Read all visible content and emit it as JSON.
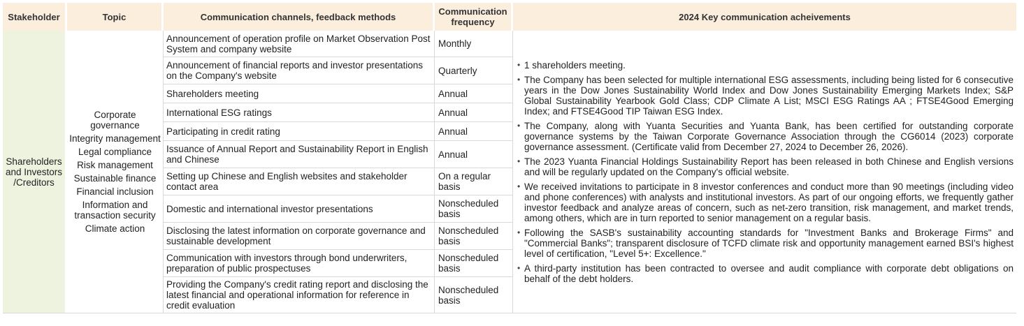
{
  "headers": {
    "stakeholder": "Stakeholder",
    "topic": "Topic",
    "channels": "Communication channels, feedback methods",
    "frequency": "Communication frequency",
    "achievements": "2024 Key communication acheivements"
  },
  "stakeholder": "Shareholders and Investors /Creditors",
  "topics": [
    "Corporate governance",
    "Integrity management",
    "Legal compliance",
    "Risk management",
    "Sustainable finance",
    "Financial inclusion",
    "Information and transaction security",
    "Climate action"
  ],
  "rows": [
    {
      "channel": "Announcement of operation profile on Market Observation Post System and company website",
      "frequency": "Monthly"
    },
    {
      "channel": "Announcement of financial reports and investor presentations on the Company's website",
      "frequency": "Quarterly"
    },
    {
      "channel": "Shareholders meeting",
      "frequency": "Annual"
    },
    {
      "channel": "International ESG ratings",
      "frequency": "Annual"
    },
    {
      "channel": "Participating in credit rating",
      "frequency": "Annual"
    },
    {
      "channel": "Issuance of Annual Report and Sustainability Report in English and Chinese",
      "frequency": "Annual"
    },
    {
      "channel": "Setting up Chinese and English websites and stakeholder contact area",
      "frequency": "On a regular basis"
    },
    {
      "channel": "Domestic and international investor presentations",
      "frequency": "Nonscheduled basis"
    },
    {
      "channel": "Disclosing the latest information on corporate governance and sustainable development",
      "frequency": "Nonscheduled basis"
    },
    {
      "channel": "Communication with investors through bond underwriters, preparation of public prospectuses",
      "frequency": "Nonscheduled basis"
    },
    {
      "channel": "Providing the Company's credit rating report and disclosing the latest financial and operational information for reference in credit evaluation",
      "frequency": "Nonscheduled basis"
    }
  ],
  "achievements": [
    "1 shareholders meeting.",
    "The Company has been selected for multiple international ESG assessments, including being listed for 6 consecutive years in the Dow Jones Sustainability World Index and Dow Jones Sustainability Emerging Markets Index; S&P Global Sustainability Yearbook Gold Class; CDP Climate A List; MSCI ESG Ratings AA ; FTSE4Good Emerging Index; and FTSE4Good TIP Taiwan ESG Index.",
    "The Company, along with Yuanta Securities and Yuanta Bank, has been certified for outstanding corporate governance systems by the Taiwan Corporate Governance Association through the CG6014 (2023) corporate governance assessment. (Certificate valid from December 27, 2024 to December 26, 2026).",
    "The 2023 Yuanta Financial Holdings Sustainability Report has been released in both Chinese and English versions and will be regularly updated on the Company's official website.",
    "We received invitations to participate in 8 investor conferences and conduct more than 90 meetings (including video and phone conferences) with analysts and institutional investors. As part of our ongoing efforts, we frequently gather investor feedback and analyze areas of concern, such as net-zero transition, risk management, and market trends, among others, which are in turn reported to senior management on a regular basis.",
    "Following the SASB's sustainability accounting standards for \"Investment Banks and Brokerage Firms\" and \"Commercial Banks\"; transparent disclosure of TCFD climate risk and opportunity management earned BSI's highest level of certification, \"Level 5+: Excellence.\"",
    "A third-party institution has been contracted to oversee and audit compliance with corporate debt obligations on behalf of the debt holders."
  ]
}
